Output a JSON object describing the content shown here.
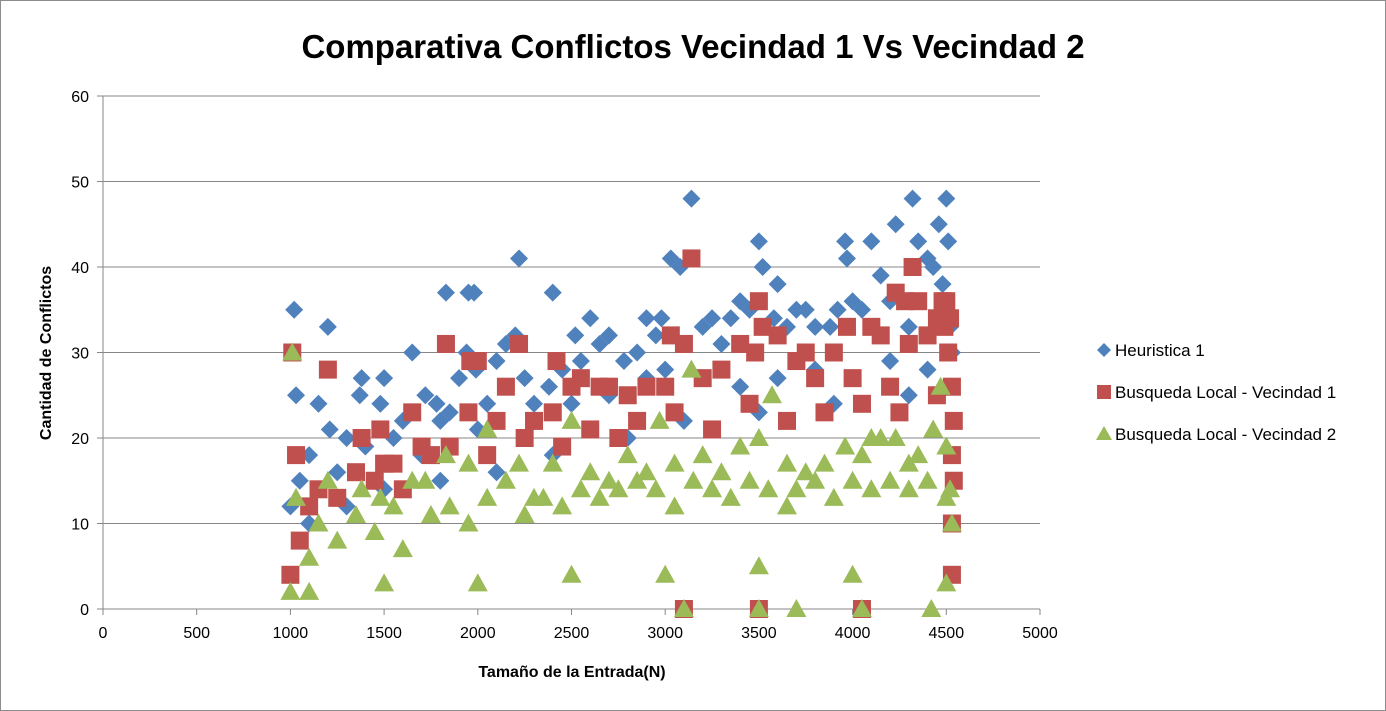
{
  "chart_data": {
    "type": "scatter",
    "title": "Comparativa Conflictos Vecindad 1 Vs Vecindad 2",
    "xlabel": "Tamaño de la Entrada(N)",
    "ylabel": "Cantidad de Conflictos",
    "xlim": [
      0,
      5000
    ],
    "ylim": [
      0,
      60
    ],
    "xticks": [
      "0",
      "500",
      "1000",
      "1500",
      "2000",
      "2500",
      "3000",
      "3500",
      "4000",
      "4500",
      "5000"
    ],
    "yticks": [
      "0",
      "10",
      "20",
      "30",
      "40",
      "50",
      "60"
    ],
    "grid": "horizontal",
    "legend_position": "right",
    "series": [
      {
        "name": "Heuristica 1",
        "marker": "diamond",
        "color": "#4f81bd",
        "points": [
          [
            1020,
            35
          ],
          [
            1030,
            25
          ],
          [
            1150,
            24
          ],
          [
            1200,
            33
          ],
          [
            1210,
            21
          ],
          [
            1300,
            20
          ],
          [
            1380,
            27
          ],
          [
            1370,
            25
          ],
          [
            1500,
            27
          ],
          [
            1480,
            24
          ],
          [
            1650,
            30
          ],
          [
            1720,
            25
          ],
          [
            1780,
            24
          ],
          [
            1830,
            37
          ],
          [
            1850,
            23
          ],
          [
            1900,
            27
          ],
          [
            1940,
            30
          ],
          [
            1950,
            37
          ],
          [
            1980,
            37
          ],
          [
            1990,
            28
          ],
          [
            2050,
            24
          ],
          [
            2100,
            29
          ],
          [
            2150,
            31
          ],
          [
            2200,
            32
          ],
          [
            2220,
            41
          ],
          [
            2250,
            27
          ],
          [
            2300,
            24
          ],
          [
            2380,
            26
          ],
          [
            2400,
            37
          ],
          [
            2450,
            28
          ],
          [
            2520,
            32
          ],
          [
            2550,
            29
          ],
          [
            2600,
            34
          ],
          [
            2650,
            31
          ],
          [
            2700,
            32
          ],
          [
            2780,
            29
          ],
          [
            2850,
            30
          ],
          [
            2900,
            34
          ],
          [
            2950,
            32
          ],
          [
            2980,
            34
          ],
          [
            3030,
            41
          ],
          [
            3080,
            40
          ],
          [
            3140,
            48
          ],
          [
            3200,
            33
          ],
          [
            3250,
            34
          ],
          [
            3300,
            31
          ],
          [
            3350,
            34
          ],
          [
            3400,
            36
          ],
          [
            3450,
            35
          ],
          [
            3500,
            43
          ],
          [
            3520,
            40
          ],
          [
            3580,
            34
          ],
          [
            3600,
            38
          ],
          [
            3650,
            33
          ],
          [
            3700,
            35
          ],
          [
            3750,
            35
          ],
          [
            3800,
            33
          ],
          [
            3880,
            33
          ],
          [
            3920,
            35
          ],
          [
            3960,
            43
          ],
          [
            3970,
            41
          ],
          [
            4000,
            36
          ],
          [
            4050,
            35
          ],
          [
            4100,
            43
          ],
          [
            4150,
            39
          ],
          [
            4200,
            36
          ],
          [
            4230,
            45
          ],
          [
            4300,
            33
          ],
          [
            4320,
            48
          ],
          [
            4350,
            43
          ],
          [
            4400,
            41
          ],
          [
            4430,
            40
          ],
          [
            4460,
            45
          ],
          [
            4480,
            38
          ],
          [
            4500,
            48
          ],
          [
            4510,
            43
          ],
          [
            4520,
            33
          ],
          [
            4530,
            30
          ],
          [
            1000,
            12
          ],
          [
            1050,
            15
          ],
          [
            1100,
            18
          ],
          [
            1250,
            16
          ],
          [
            1400,
            19
          ],
          [
            1550,
            20
          ],
          [
            1600,
            22
          ],
          [
            1700,
            18
          ],
          [
            1800,
            22
          ],
          [
            2000,
            21
          ],
          [
            2300,
            22
          ],
          [
            2500,
            24
          ],
          [
            2700,
            25
          ],
          [
            2900,
            27
          ],
          [
            3000,
            28
          ],
          [
            3200,
            27
          ],
          [
            3400,
            26
          ],
          [
            3600,
            27
          ],
          [
            3800,
            28
          ],
          [
            4000,
            27
          ],
          [
            4200,
            29
          ],
          [
            4400,
            28
          ],
          [
            1100,
            10
          ],
          [
            1300,
            12
          ],
          [
            1500,
            14
          ],
          [
            1800,
            15
          ],
          [
            2100,
            16
          ],
          [
            2400,
            18
          ],
          [
            2800,
            20
          ],
          [
            3100,
            22
          ],
          [
            3500,
            23
          ],
          [
            3900,
            24
          ],
          [
            4300,
            25
          ],
          [
            4500,
            26
          ]
        ]
      },
      {
        "name": "Busqueda Local - Vecindad 1",
        "marker": "square",
        "color": "#c0504d",
        "points": [
          [
            1010,
            30
          ],
          [
            1030,
            18
          ],
          [
            1200,
            28
          ],
          [
            1380,
            20
          ],
          [
            1480,
            21
          ],
          [
            1500,
            17
          ],
          [
            1650,
            23
          ],
          [
            1700,
            19
          ],
          [
            1830,
            31
          ],
          [
            1950,
            23
          ],
          [
            1960,
            29
          ],
          [
            2000,
            29
          ],
          [
            2100,
            22
          ],
          [
            2150,
            26
          ],
          [
            2220,
            31
          ],
          [
            2300,
            22
          ],
          [
            2400,
            23
          ],
          [
            2420,
            29
          ],
          [
            2500,
            26
          ],
          [
            2550,
            27
          ],
          [
            2650,
            26
          ],
          [
            2700,
            26
          ],
          [
            2800,
            25
          ],
          [
            2900,
            26
          ],
          [
            3000,
            26
          ],
          [
            3030,
            32
          ],
          [
            3100,
            31
          ],
          [
            3140,
            41
          ],
          [
            3200,
            27
          ],
          [
            3300,
            28
          ],
          [
            3400,
            31
          ],
          [
            3480,
            30
          ],
          [
            3500,
            36
          ],
          [
            3520,
            33
          ],
          [
            3600,
            32
          ],
          [
            3700,
            29
          ],
          [
            3750,
            30
          ],
          [
            3800,
            27
          ],
          [
            3900,
            30
          ],
          [
            3970,
            33
          ],
          [
            4000,
            27
          ],
          [
            4100,
            33
          ],
          [
            4150,
            32
          ],
          [
            4200,
            26
          ],
          [
            4230,
            37
          ],
          [
            4280,
            36
          ],
          [
            4300,
            31
          ],
          [
            4320,
            40
          ],
          [
            4350,
            36
          ],
          [
            4400,
            32
          ],
          [
            4450,
            34
          ],
          [
            4480,
            36
          ],
          [
            4490,
            33
          ],
          [
            4500,
            36
          ],
          [
            4510,
            30
          ],
          [
            4520,
            34
          ],
          [
            4530,
            26
          ],
          [
            4540,
            22
          ],
          [
            4530,
            18
          ],
          [
            4540,
            15
          ],
          [
            1000,
            4
          ],
          [
            1050,
            8
          ],
          [
            1100,
            12
          ],
          [
            1150,
            14
          ],
          [
            1250,
            13
          ],
          [
            1350,
            16
          ],
          [
            1450,
            15
          ],
          [
            1550,
            17
          ],
          [
            1600,
            14
          ],
          [
            1750,
            18
          ],
          [
            1850,
            19
          ],
          [
            2050,
            18
          ],
          [
            2250,
            20
          ],
          [
            2450,
            19
          ],
          [
            2600,
            21
          ],
          [
            2750,
            20
          ],
          [
            2850,
            22
          ],
          [
            3050,
            23
          ],
          [
            3250,
            21
          ],
          [
            3450,
            24
          ],
          [
            3650,
            22
          ],
          [
            3850,
            23
          ],
          [
            4050,
            24
          ],
          [
            4250,
            23
          ],
          [
            4450,
            25
          ],
          [
            3100,
            0
          ],
          [
            3500,
            0
          ],
          [
            4050,
            0
          ],
          [
            4530,
            4
          ],
          [
            4530,
            10
          ]
        ]
      },
      {
        "name": "Busqueda Local - Vecindad 2",
        "marker": "triangle",
        "color": "#9bbb59",
        "points": [
          [
            1010,
            30
          ],
          [
            1030,
            13
          ],
          [
            1200,
            15
          ],
          [
            1380,
            14
          ],
          [
            1480,
            13
          ],
          [
            1650,
            15
          ],
          [
            1720,
            15
          ],
          [
            1830,
            18
          ],
          [
            1950,
            17
          ],
          [
            2050,
            21
          ],
          [
            2150,
            15
          ],
          [
            2220,
            17
          ],
          [
            2300,
            13
          ],
          [
            2400,
            17
          ],
          [
            2500,
            22
          ],
          [
            2600,
            16
          ],
          [
            2700,
            15
          ],
          [
            2800,
            18
          ],
          [
            2900,
            16
          ],
          [
            2970,
            22
          ],
          [
            3050,
            17
          ],
          [
            3140,
            28
          ],
          [
            3200,
            18
          ],
          [
            3300,
            16
          ],
          [
            3400,
            19
          ],
          [
            3500,
            20
          ],
          [
            3570,
            25
          ],
          [
            3650,
            17
          ],
          [
            3750,
            16
          ],
          [
            3850,
            17
          ],
          [
            3960,
            19
          ],
          [
            4050,
            18
          ],
          [
            4100,
            20
          ],
          [
            4150,
            20
          ],
          [
            4230,
            20
          ],
          [
            4300,
            17
          ],
          [
            4350,
            18
          ],
          [
            4430,
            21
          ],
          [
            4470,
            26
          ],
          [
            4500,
            19
          ],
          [
            4520,
            14
          ],
          [
            4530,
            10
          ],
          [
            1000,
            2
          ],
          [
            1100,
            6
          ],
          [
            1150,
            10
          ],
          [
            1250,
            8
          ],
          [
            1350,
            11
          ],
          [
            1450,
            9
          ],
          [
            1550,
            12
          ],
          [
            1600,
            7
          ],
          [
            1750,
            11
          ],
          [
            1850,
            12
          ],
          [
            1950,
            10
          ],
          [
            2050,
            13
          ],
          [
            2250,
            11
          ],
          [
            2350,
            13
          ],
          [
            2450,
            12
          ],
          [
            2550,
            14
          ],
          [
            2650,
            13
          ],
          [
            2750,
            14
          ],
          [
            2850,
            15
          ],
          [
            2950,
            14
          ],
          [
            3050,
            12
          ],
          [
            3150,
            15
          ],
          [
            3250,
            14
          ],
          [
            3350,
            13
          ],
          [
            3450,
            15
          ],
          [
            3550,
            14
          ],
          [
            3650,
            12
          ],
          [
            3700,
            14
          ],
          [
            3800,
            15
          ],
          [
            3900,
            13
          ],
          [
            4000,
            15
          ],
          [
            4100,
            14
          ],
          [
            4200,
            15
          ],
          [
            4300,
            14
          ],
          [
            4400,
            15
          ],
          [
            4500,
            13
          ],
          [
            3100,
            0
          ],
          [
            3500,
            0
          ],
          [
            3700,
            0
          ],
          [
            4050,
            0
          ],
          [
            4420,
            0
          ],
          [
            1100,
            2
          ],
          [
            1500,
            3
          ],
          [
            2000,
            3
          ],
          [
            2500,
            4
          ],
          [
            3000,
            4
          ],
          [
            3500,
            5
          ],
          [
            4000,
            4
          ],
          [
            4500,
            3
          ]
        ]
      }
    ]
  }
}
